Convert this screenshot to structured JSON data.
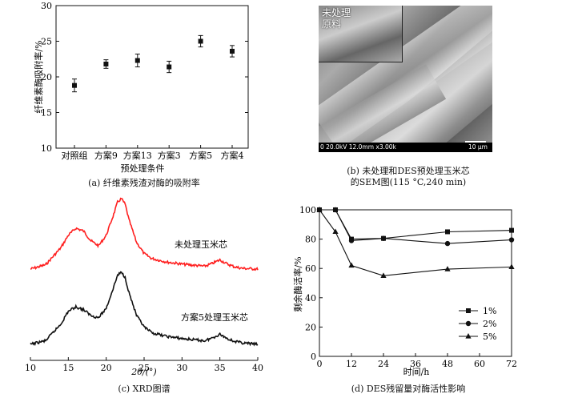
{
  "panel_a": {
    "caption": "(a) 纤维素残渣对酶的吸附率",
    "ylabel": "纤维素酶吸附率/%",
    "xlabel": "预处理条件",
    "yticks": [
      "10",
      "15",
      "20",
      "25",
      "30"
    ]
  },
  "panel_b": {
    "caption_line1": "(b) 未处理和DES预处理玉米芯",
    "caption_line2": "的SEM图(115 °C,240 min)",
    "inset_label": "未处理原料",
    "info_text": "0 20.0kV 12.0mm x3.00k",
    "scale_text": "10 μm"
  },
  "panel_c": {
    "caption": "(c) XRD图谱",
    "xlabel": "2θ/(°)",
    "xticks": [
      "10",
      "15",
      "20",
      "25",
      "30",
      "35",
      "40"
    ]
  },
  "panel_d": {
    "caption": "(d) DES残留量对酶活性影响",
    "ylabel": "剩余酶活率/%",
    "xlabel": "时间/h",
    "xticks": [
      "0",
      "12",
      "24",
      "36",
      "48",
      "60",
      "72"
    ],
    "yticks": [
      "0",
      "20",
      "40",
      "60",
      "80",
      "100"
    ]
  },
  "colors": {
    "red": "#ff2020",
    "black": "#111111"
  },
  "chart_data": [
    {
      "type": "scatter",
      "categories": [
        "对照组",
        "方案9",
        "方案13",
        "方案3",
        "方案5",
        "方案4"
      ],
      "values": [
        18.8,
        21.8,
        22.3,
        21.4,
        25.0,
        23.6
      ],
      "errors": [
        0.9,
        0.6,
        0.9,
        0.8,
        0.8,
        0.8
      ],
      "title": "",
      "xlabel": "预处理条件",
      "ylabel": "纤维素酶吸附率/%",
      "ylim": [
        10,
        30
      ]
    },
    {
      "type": "line",
      "xlabel": "2θ/(°)",
      "ylabel": "",
      "xlim": [
        10,
        40
      ],
      "series": [
        {
          "name": "未处理玉米芯",
          "color": "#ff2020",
          "x": [
            10,
            12,
            14,
            15,
            16,
            17,
            18,
            19,
            20,
            21,
            21.5,
            22,
            22.5,
            23,
            24,
            25,
            26,
            28,
            30,
            32,
            33,
            34,
            35,
            36,
            37,
            38,
            40
          ],
          "y": [
            0.0,
            0.06,
            0.3,
            0.48,
            0.58,
            0.54,
            0.4,
            0.33,
            0.48,
            0.78,
            0.95,
            1.0,
            0.92,
            0.7,
            0.38,
            0.22,
            0.15,
            0.1,
            0.07,
            0.05,
            0.04,
            0.08,
            0.13,
            0.07,
            0.03,
            0.01,
            0.0
          ]
        },
        {
          "name": "方案5处理玉米芯",
          "color": "#111111",
          "x": [
            10,
            12,
            14,
            15,
            16,
            17,
            18,
            19,
            20,
            21,
            21.5,
            22,
            22.5,
            23,
            24,
            25,
            26,
            28,
            30,
            32,
            33,
            34,
            35,
            36,
            37,
            38,
            40
          ],
          "y": [
            0.0,
            0.05,
            0.28,
            0.46,
            0.52,
            0.48,
            0.4,
            0.37,
            0.5,
            0.8,
            0.96,
            1.0,
            0.93,
            0.72,
            0.4,
            0.24,
            0.16,
            0.11,
            0.08,
            0.06,
            0.05,
            0.09,
            0.14,
            0.08,
            0.04,
            0.02,
            0.0
          ]
        }
      ]
    },
    {
      "type": "line",
      "xlabel": "时间/h",
      "ylabel": "剩余酶活率/%",
      "xlim": [
        0,
        72
      ],
      "ylim": [
        0,
        100
      ],
      "legend_position": "bottom-right",
      "series": [
        {
          "name": "1%",
          "marker": "square",
          "x": [
            0,
            6,
            12,
            24,
            48,
            72
          ],
          "y": [
            100,
            100,
            80,
            80.5,
            85,
            86
          ]
        },
        {
          "name": "2%",
          "marker": "circle",
          "x": [
            0,
            6,
            12,
            24,
            48,
            72
          ],
          "y": [
            100,
            100,
            79,
            80.5,
            77,
            79.5
          ]
        },
        {
          "name": "5%",
          "marker": "triangle",
          "x": [
            0,
            6,
            12,
            24,
            48,
            72
          ],
          "y": [
            100,
            85,
            62,
            55,
            59.5,
            61
          ]
        }
      ]
    }
  ]
}
